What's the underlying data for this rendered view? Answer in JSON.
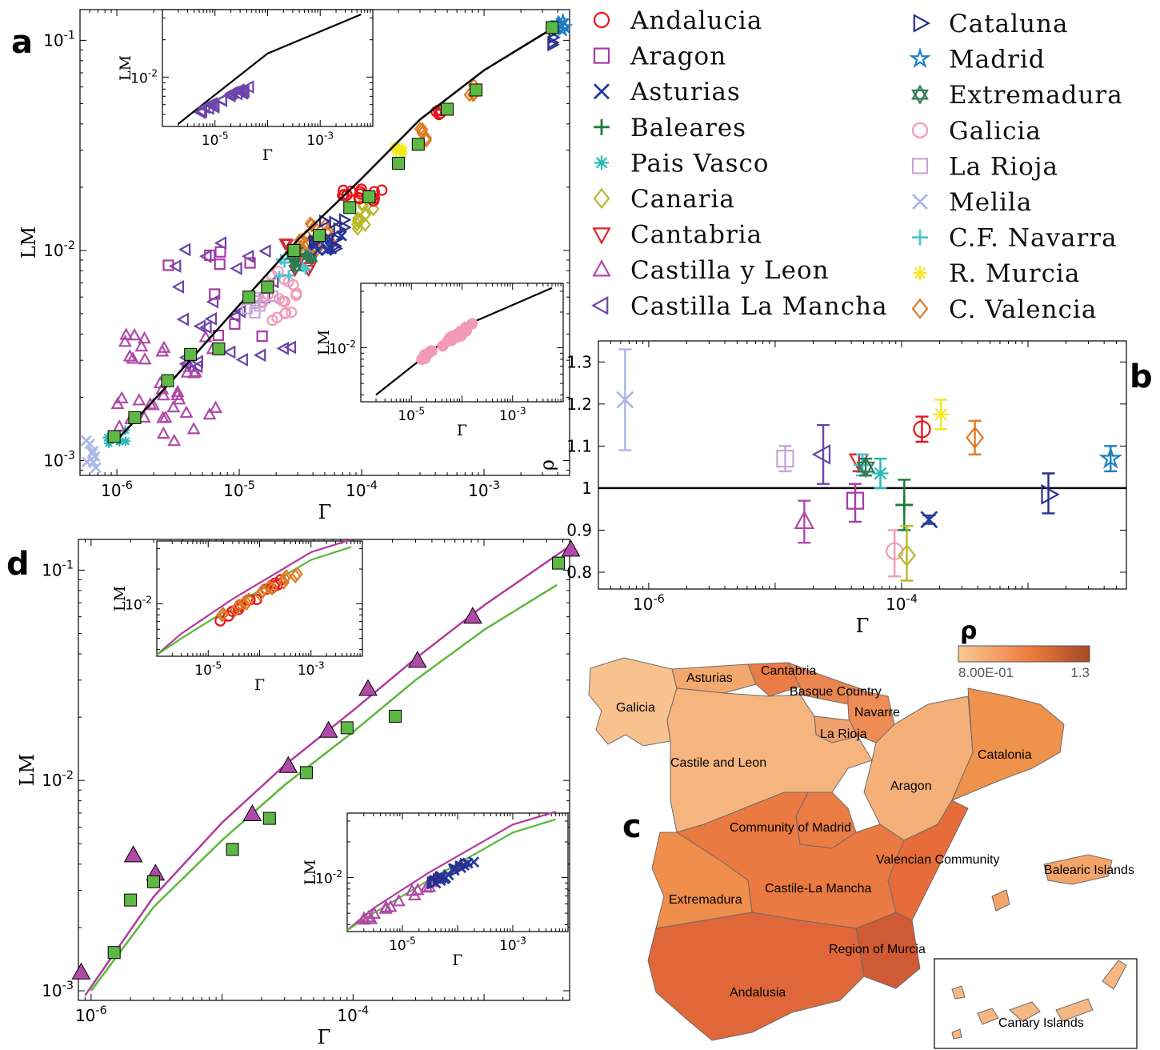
{
  "panels": {
    "a": "a",
    "b": "b",
    "c": "c",
    "d": "d"
  },
  "colors": {
    "Andalucia": "#e8141c",
    "Aragon": "#a63aa6",
    "Asturias": "#24399b",
    "Baleares": "#1a7a3a",
    "PaisVasco": "#27b9b8",
    "Canaria": "#b9b82a",
    "Cantabria": "#d8262c",
    "CastillaLeon": "#b04aa8",
    "CastillaLaMancha": "#6b45a8",
    "Cataluna": "#2b2f8f",
    "Madrid": "#1c7fc0",
    "Extremadura": "#2f7a52",
    "Galicia": "#f29ab6",
    "LaRioja": "#c7a6d6",
    "Melila": "#aab8e6",
    "Navarra": "#4cc3d3",
    "Murcia": "#f2e81c",
    "Valencia": "#e07a26",
    "fit_black": "#000000",
    "fit_magenta": "#b13a9e",
    "fit_green": "#5cb83a",
    "square_fill": "#5db845"
  },
  "legend": {
    "left": [
      {
        "label": "Andalucia",
        "marker": "circle",
        "color": "Andalucia"
      },
      {
        "label": "Aragon",
        "marker": "square",
        "color": "Aragon"
      },
      {
        "label": "Asturias",
        "marker": "x",
        "color": "Asturias"
      },
      {
        "label": "Baleares",
        "marker": "plus",
        "color": "Baleares"
      },
      {
        "label": "Pais Vasco",
        "marker": "asterisk",
        "color": "PaisVasco"
      },
      {
        "label": "Canaria",
        "marker": "diamond",
        "color": "Canaria"
      },
      {
        "label": "Cantabria",
        "marker": "tri-down",
        "color": "Cantabria"
      },
      {
        "label": "Castilla y Leon",
        "marker": "tri-up",
        "color": "CastillaLeon"
      },
      {
        "label": "Castilla La Mancha",
        "marker": "tri-left",
        "color": "CastillaLaMancha"
      }
    ],
    "right": [
      {
        "label": "Cataluna",
        "marker": "tri-right",
        "color": "Cataluna"
      },
      {
        "label": "Madrid",
        "marker": "star5",
        "color": "Madrid"
      },
      {
        "label": "Extremadura",
        "marker": "star6",
        "color": "Extremadura"
      },
      {
        "label": "Galicia",
        "marker": "circle",
        "color": "Galicia"
      },
      {
        "label": "La Rioja",
        "marker": "square",
        "color": "LaRioja"
      },
      {
        "label": "Melila",
        "marker": "x",
        "color": "Melila"
      },
      {
        "label": "C.F. Navarra",
        "marker": "plus",
        "color": "Navarra"
      },
      {
        "label": "R. Murcia",
        "marker": "asterisk",
        "color": "Murcia"
      },
      {
        "label": "C. Valencia",
        "marker": "diamond",
        "color": "Valencia"
      }
    ]
  },
  "chart_data": [
    {
      "id": "a",
      "type": "scatter",
      "xlabel": "Γ",
      "ylabel": "LM",
      "xscale": "log",
      "yscale": "log",
      "xlim": [
        5e-07,
        0.005
      ],
      "ylim": [
        0.00085,
        0.14
      ],
      "xticks": [
        {
          "v": 1e-06,
          "l": "10^-6"
        },
        {
          "v": 1e-05,
          "l": "10^-5"
        },
        {
          "v": 0.0001,
          "l": "10^-4"
        },
        {
          "v": 0.001,
          "l": "10^-3"
        }
      ],
      "yticks": [
        {
          "v": 0.001,
          "l": "10^-3"
        },
        {
          "v": 0.01,
          "l": "10^-2"
        },
        {
          "v": 0.1,
          "l": "10^-1"
        }
      ],
      "fit_line": [
        [
          1e-06,
          0.00125
        ],
        [
          3e-06,
          0.0025
        ],
        [
          1e-05,
          0.0055
        ],
        [
          3e-05,
          0.0112
        ],
        [
          0.0001,
          0.022
        ],
        [
          0.0003,
          0.042
        ],
        [
          0.001,
          0.072
        ],
        [
          0.004,
          0.118
        ]
      ],
      "binned_squares": [
        [
          9.5e-07,
          0.0013
        ],
        [
          1.4e-06,
          0.0016
        ],
        [
          2.6e-06,
          0.0024
        ],
        [
          4e-06,
          0.0032
        ],
        [
          6.8e-06,
          0.0034
        ],
        [
          1.2e-05,
          0.006
        ],
        [
          1.7e-05,
          0.0067
        ],
        [
          2.8e-05,
          0.01
        ],
        [
          4.5e-05,
          0.0118
        ],
        [
          8e-05,
          0.016
        ],
        [
          0.000115,
          0.018
        ],
        [
          0.0002,
          0.026
        ],
        [
          0.00029,
          0.032
        ],
        [
          0.0005,
          0.047
        ],
        [
          0.00086,
          0.058
        ],
        [
          0.0036,
          0.115
        ]
      ],
      "clusters": [
        {
          "region": "Melila",
          "marker": "x",
          "n": 8,
          "x": [
            5.5e-07,
            7.5e-07
          ],
          "y": [
            0.0009,
            0.0013
          ]
        },
        {
          "region": "PaisVasco",
          "marker": "asterisk",
          "n": 6,
          "x": [
            8e-07,
            1.2e-06
          ],
          "y": [
            0.0012,
            0.0014
          ]
        },
        {
          "region": "CastillaLeon",
          "marker": "tri-up",
          "n": 40,
          "x": [
            1e-06,
            7e-06
          ],
          "y": [
            0.0012,
            0.004
          ]
        },
        {
          "region": "CastillaLaMancha",
          "marker": "tri-left",
          "n": 25,
          "x": [
            3e-06,
            4e-05
          ],
          "y": [
            0.0028,
            0.012
          ]
        },
        {
          "region": "Aragon",
          "marker": "square",
          "n": 10,
          "x": [
            2e-06,
            2e-05
          ],
          "y": [
            0.002,
            0.01
          ]
        },
        {
          "region": "Galicia",
          "marker": "circle",
          "n": 20,
          "x": [
            1.5e-05,
            3e-05
          ],
          "y": [
            0.0046,
            0.008
          ]
        },
        {
          "region": "LaRioja",
          "marker": "square",
          "n": 6,
          "x": [
            1.1e-05,
            2e-05
          ],
          "y": [
            0.005,
            0.007
          ]
        },
        {
          "region": "Cantabria",
          "marker": "tri-down",
          "n": 8,
          "x": [
            2.3e-05,
            4e-05
          ],
          "y": [
            0.008,
            0.012
          ]
        },
        {
          "region": "Navarra",
          "marker": "plus",
          "n": 8,
          "x": [
            2e-05,
            4e-05
          ],
          "y": [
            0.007,
            0.01
          ]
        },
        {
          "region": "Extremadura",
          "marker": "star6",
          "n": 8,
          "x": [
            2.5e-05,
            4e-05
          ],
          "y": [
            0.008,
            0.01
          ]
        },
        {
          "region": "Valencia",
          "marker": "diamond",
          "n": 20,
          "x": [
            3e-05,
            6e-05
          ],
          "y": [
            0.01,
            0.0135
          ]
        },
        {
          "region": "Asturias",
          "marker": "x",
          "n": 10,
          "x": [
            4e-05,
            7e-05
          ],
          "y": [
            0.01,
            0.012
          ]
        },
        {
          "region": "Cataluna",
          "marker": "tri-right",
          "n": 10,
          "x": [
            4e-05,
            8e-05
          ],
          "y": [
            0.01,
            0.014
          ]
        },
        {
          "region": "Canaria",
          "marker": "diamond",
          "n": 14,
          "x": [
            9e-05,
            0.00013
          ],
          "y": [
            0.012,
            0.018
          ]
        },
        {
          "region": "Andalucia",
          "marker": "circle",
          "n": 18,
          "x": [
            7e-05,
            0.00015
          ],
          "y": [
            0.017,
            0.02
          ]
        },
        {
          "region": "Murcia",
          "marker": "asterisk",
          "n": 6,
          "x": [
            0.00018,
            0.00022
          ],
          "y": [
            0.028,
            0.032
          ]
        },
        {
          "region": "Andalucia",
          "marker": "circle",
          "n": 5,
          "x": [
            0.0004,
            0.00048
          ],
          "y": [
            0.044,
            0.048
          ]
        },
        {
          "region": "Valencia",
          "marker": "diamond",
          "n": 5,
          "x": [
            0.0003,
            0.00036
          ],
          "y": [
            0.032,
            0.038
          ]
        },
        {
          "region": "Valencia",
          "marker": "diamond",
          "n": 4,
          "x": [
            0.00075,
            0.00085
          ],
          "y": [
            0.055,
            0.062
          ]
        },
        {
          "region": "Cataluna",
          "marker": "tri-right",
          "n": 4,
          "x": [
            0.0036,
            0.0039
          ],
          "y": [
            0.095,
            0.11
          ]
        },
        {
          "region": "Madrid",
          "marker": "star5",
          "n": 6,
          "x": [
            0.004,
            0.0046
          ],
          "y": [
            0.11,
            0.13
          ]
        }
      ],
      "insets": [
        {
          "region": "CastillaLaMancha",
          "marker": "tri-left",
          "xlabel": "Γ",
          "ylabel": "LM",
          "xticks": [
            {
              "v": 1e-05,
              "l": "10^-5"
            },
            {
              "v": 0.001,
              "l": "10^-3"
            }
          ],
          "ytick": {
            "v": 0.01,
            "l": "10^-2"
          },
          "xlim": [
            1e-06,
            0.01
          ],
          "ylim": [
            0.004,
            0.035
          ],
          "line": [
            [
              2e-06,
              0.0042
            ],
            [
              0.0001,
              0.0155
            ],
            [
              0.006,
              0.032
            ]
          ],
          "points_x": [
            5e-06,
            5e-05
          ],
          "points_y": [
            0.0052,
            0.0085
          ]
        },
        {
          "region": "Galicia",
          "marker": "circle",
          "xlabel": "Γ",
          "ylabel": "LM",
          "xticks": [
            {
              "v": 1e-05,
              "l": "10^-5"
            },
            {
              "v": 0.001,
              "l": "10^-3"
            }
          ],
          "ytick": {
            "v": 0.01,
            "l": "10^-2"
          },
          "xlim": [
            1e-06,
            0.01
          ],
          "ylim": [
            0.0035,
            0.035
          ],
          "line": [
            [
              2e-06,
              0.004
            ],
            [
              0.0001,
              0.015
            ],
            [
              0.006,
              0.032
            ]
          ],
          "points_x": [
            1.5e-05,
            0.00016
          ],
          "points_y": [
            0.0078,
            0.0155
          ]
        }
      ]
    },
    {
      "id": "b",
      "type": "errorbar",
      "xlabel": "Γ",
      "ylabel": "ρ",
      "xscale": "log",
      "xlim": [
        4e-07,
        0.006
      ],
      "ylim": [
        0.76,
        1.35
      ],
      "xticks": [
        {
          "v": 1e-06,
          "l": "10^-6"
        },
        {
          "v": 0.0001,
          "l": "10^-4"
        }
      ],
      "yticks": [
        0.8,
        0.9,
        1,
        1.1,
        1.2,
        1.3
      ],
      "reference_line": 1,
      "points": [
        {
          "region": "Melila",
          "marker": "x",
          "x": 6.5e-07,
          "y": 1.21,
          "lo": 1.09,
          "hi": 1.33
        },
        {
          "region": "LaRioja",
          "marker": "square",
          "x": 1.2e-05,
          "y": 1.07,
          "lo": 1.04,
          "hi": 1.1
        },
        {
          "region": "CastillaLeon",
          "marker": "tri-up",
          "x": 1.7e-05,
          "y": 0.92,
          "lo": 0.87,
          "hi": 0.97
        },
        {
          "region": "CastillaLaMancha",
          "marker": "tri-left",
          "x": 2.4e-05,
          "y": 1.08,
          "lo": 1.01,
          "hi": 1.15
        },
        {
          "region": "Aragon",
          "marker": "square",
          "x": 4.3e-05,
          "y": 0.97,
          "lo": 0.92,
          "hi": 1.01
        },
        {
          "region": "Cantabria",
          "marker": "tri-down",
          "x": 4.6e-05,
          "y": 1.065,
          "lo": 1.04,
          "hi": 1.08
        },
        {
          "region": "Navarra",
          "marker": "plus",
          "x": 4.9e-05,
          "y": 1.055,
          "lo": 1.03,
          "hi": 1.08
        },
        {
          "region": "Extremadura",
          "marker": "star6",
          "x": 5.2e-05,
          "y": 1.05,
          "lo": 1.03,
          "hi": 1.07
        },
        {
          "region": "PaisVasco",
          "marker": "asterisk",
          "x": 6.8e-05,
          "y": 1.035,
          "lo": 1.0,
          "hi": 1.07
        },
        {
          "region": "Galicia",
          "marker": "circle",
          "x": 8.8e-05,
          "y": 0.85,
          "lo": 0.79,
          "hi": 0.9
        },
        {
          "region": "Baleares",
          "marker": "plus",
          "x": 0.000105,
          "y": 0.96,
          "lo": 0.9,
          "hi": 1.02
        },
        {
          "region": "Canaria",
          "marker": "diamond",
          "x": 0.00011,
          "y": 0.84,
          "lo": 0.78,
          "hi": 0.91
        },
        {
          "region": "Andalucia",
          "marker": "circle",
          "x": 0.000145,
          "y": 1.14,
          "lo": 1.11,
          "hi": 1.17
        },
        {
          "region": "Asturias",
          "marker": "x",
          "x": 0.000165,
          "y": 0.925,
          "lo": 0.915,
          "hi": 0.935
        },
        {
          "region": "Murcia",
          "marker": "asterisk",
          "x": 0.000205,
          "y": 1.175,
          "lo": 1.14,
          "hi": 1.21
        },
        {
          "region": "Valencia",
          "marker": "diamond",
          "x": 0.00038,
          "y": 1.12,
          "lo": 1.08,
          "hi": 1.16
        },
        {
          "region": "Cataluna",
          "marker": "tri-right",
          "x": 0.00145,
          "y": 0.985,
          "lo": 0.94,
          "hi": 1.035
        },
        {
          "region": "Madrid",
          "marker": "star5",
          "x": 0.0045,
          "y": 1.07,
          "lo": 1.04,
          "hi": 1.1
        }
      ]
    },
    {
      "id": "c",
      "type": "choropleth",
      "colorbar": {
        "title": "ρ",
        "min_label": "8.00E-01",
        "max_label": "1.3",
        "min_color": "#f8c896",
        "max_color": "#a24a26"
      },
      "labels": [
        "Galicia",
        "Asturias",
        "Cantabria",
        "Basque Country",
        "Navarre",
        "La Rioja",
        "Castile and Leon",
        "Catalonia",
        "Aragon",
        "Community of Madrid",
        "Valencian Community",
        "Balearic Islands",
        "Extremadura",
        "Castile-La Mancha",
        "Region of Murcia",
        "Andalusia",
        "Canary Islands"
      ]
    },
    {
      "id": "d",
      "type": "scatter",
      "xlabel": "Γ",
      "ylabel": "LM",
      "xscale": "log",
      "yscale": "log",
      "xlim": [
        8e-07,
        0.0045
      ],
      "ylim": [
        0.0009,
        0.14
      ],
      "xticks": [
        {
          "v": 1e-06,
          "l": "10^-6"
        },
        {
          "v": 0.0001,
          "l": "10^-4"
        }
      ],
      "yticks": [
        {
          "v": 0.001,
          "l": "10^-3"
        },
        {
          "v": 0.01,
          "l": "10^-2"
        },
        {
          "v": 0.1,
          "l": "10^-1"
        }
      ],
      "magenta_line": [
        [
          9e-07,
          0.00095
        ],
        [
          3e-06,
          0.0028
        ],
        [
          1e-05,
          0.0063
        ],
        [
          3e-05,
          0.0118
        ],
        [
          0.0001,
          0.0215
        ],
        [
          0.0003,
          0.038
        ],
        [
          0.001,
          0.068
        ],
        [
          0.0045,
          0.13
        ]
      ],
      "green_line": [
        [
          1e-06,
          0.001
        ],
        [
          3e-06,
          0.0025
        ],
        [
          1e-05,
          0.0052
        ],
        [
          3e-05,
          0.0095
        ],
        [
          0.0001,
          0.017
        ],
        [
          0.0003,
          0.03
        ],
        [
          0.001,
          0.052
        ],
        [
          0.0036,
          0.085
        ]
      ],
      "triangles": [
        [
          8.4e-07,
          0.00122
        ],
        [
          2.1e-06,
          0.0044
        ],
        [
          3.1e-06,
          0.0036
        ],
        [
          1.7e-05,
          0.0069
        ],
        [
          3.2e-05,
          0.0117
        ],
        [
          6.5e-05,
          0.0172
        ],
        [
          0.00013,
          0.0272
        ],
        [
          0.00031,
          0.037
        ],
        [
          0.00082,
          0.06
        ],
        [
          0.0046,
          0.125
        ]
      ],
      "squares": [
        [
          1.5e-06,
          0.00152
        ],
        [
          2e-06,
          0.0027
        ],
        [
          3e-06,
          0.0033
        ],
        [
          1.2e-05,
          0.0047
        ],
        [
          2.3e-05,
          0.0066
        ],
        [
          4.4e-05,
          0.0109
        ],
        [
          9e-05,
          0.0178
        ],
        [
          0.00021,
          0.0202
        ],
        [
          0.0037,
          0.108
        ]
      ],
      "insets": [
        {
          "xlabel": "Γ",
          "ylabel": "LM",
          "xticks": [
            {
              "v": 1e-05,
              "l": "10^-5"
            },
            {
              "v": 0.001,
              "l": "10^-3"
            }
          ],
          "ytick": {
            "v": 0.01,
            "l": "10^-2"
          },
          "xlim": [
            1e-06,
            0.01
          ],
          "ylim": [
            0.0035,
            0.035
          ],
          "regions": [
            "Andalucia",
            "Valencia"
          ]
        },
        {
          "xlabel": "Γ",
          "ylabel": "LM",
          "xticks": [
            {
              "v": 1e-05,
              "l": "10^-5"
            },
            {
              "v": 0.001,
              "l": "10^-3"
            }
          ],
          "ytick": {
            "v": 0.01,
            "l": "10^-2"
          },
          "xlim": [
            1e-06,
            0.01
          ],
          "ylim": [
            0.0035,
            0.035
          ],
          "regions": [
            "CastillaLeon",
            "Asturias"
          ]
        }
      ]
    }
  ]
}
